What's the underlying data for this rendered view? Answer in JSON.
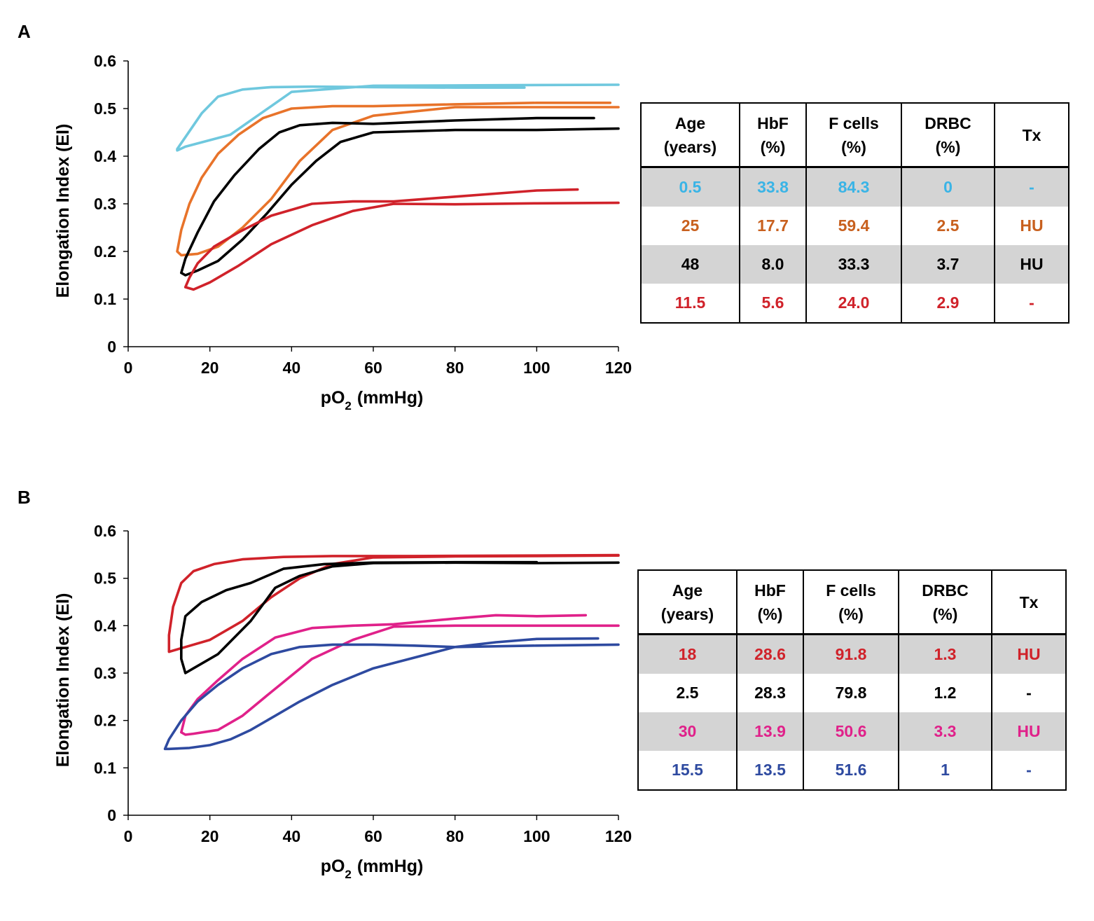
{
  "panels": [
    {
      "letter": "A",
      "table": {
        "headers": [
          [
            "Age",
            "(years)"
          ],
          [
            "HbF",
            "(%)"
          ],
          [
            "F cells",
            "(%)"
          ],
          [
            "DRBC",
            "(%)"
          ],
          [
            "Tx"
          ]
        ],
        "rows": [
          {
            "color": "#3ab4e6",
            "shaded": true,
            "cells": [
              "0.5",
              "33.8",
              "84.3",
              "0",
              "-"
            ]
          },
          {
            "color": "#c8601e",
            "shaded": false,
            "cells": [
              "25",
              "17.7",
              "59.4",
              "2.5",
              "HU"
            ]
          },
          {
            "color": "#000000",
            "shaded": true,
            "cells": [
              "48",
              "8.0",
              "33.3",
              "3.7",
              "HU"
            ]
          },
          {
            "color": "#d0222a",
            "shaded": false,
            "cells": [
              "11.5",
              "5.6",
              "24.0",
              "2.9",
              "-"
            ]
          }
        ]
      }
    },
    {
      "letter": "B",
      "table": {
        "headers": [
          [
            "Age",
            "(years)"
          ],
          [
            "HbF",
            "(%)"
          ],
          [
            "F cells",
            "(%)"
          ],
          [
            "DRBC",
            "(%)"
          ],
          [
            "Tx"
          ]
        ],
        "rows": [
          {
            "color": "#d0222a",
            "shaded": true,
            "cells": [
              "18",
              "28.6",
              "91.8",
              "1.3",
              "HU"
            ]
          },
          {
            "color": "#000000",
            "shaded": false,
            "cells": [
              "2.5",
              "28.3",
              "79.8",
              "1.2",
              "-"
            ]
          },
          {
            "color": "#e0218a",
            "shaded": true,
            "cells": [
              "30",
              "13.9",
              "50.6",
              "3.3",
              "HU"
            ]
          },
          {
            "color": "#2e4aa0",
            "shaded": false,
            "cells": [
              "15.5",
              "13.5",
              "51.6",
              "1",
              "-"
            ]
          }
        ]
      }
    }
  ],
  "chart_data": [
    {
      "type": "line",
      "panel": "A",
      "xlabel": "pO",
      "xlabel_sub": "2",
      "xlabel_unit": "(mmHg)",
      "ylabel": "Elongation Index (EI)",
      "xlim": [
        0,
        120
      ],
      "ylim": [
        0,
        0.6
      ],
      "xticks": [
        0,
        20,
        40,
        60,
        80,
        100,
        120
      ],
      "yticks": [
        0,
        0.1,
        0.2,
        0.3,
        0.4,
        0.5,
        0.6
      ],
      "ytick_labels": [
        "0",
        "0.1",
        "0.2",
        "0.3",
        "0.4",
        "0.5",
        "0.6"
      ],
      "grid": false,
      "series": [
        {
          "name": "0.5 years",
          "color": "#6fc8de",
          "x": [
            120,
            90,
            60,
            40,
            25,
            14,
            12,
            12,
            14,
            18,
            22,
            28,
            35,
            45,
            60,
            80,
            97
          ],
          "y": [
            0.55,
            0.549,
            0.548,
            0.535,
            0.445,
            0.42,
            0.412,
            0.415,
            0.44,
            0.49,
            0.525,
            0.54,
            0.545,
            0.546,
            0.545,
            0.544,
            0.544
          ]
        },
        {
          "name": "25 years",
          "color": "#e8732a",
          "x": [
            120,
            100,
            80,
            60,
            50,
            42,
            35,
            28,
            22,
            17,
            13,
            12,
            13,
            15,
            18,
            22,
            27,
            33,
            40,
            50,
            60,
            80,
            100,
            118
          ],
          "y": [
            0.503,
            0.503,
            0.503,
            0.485,
            0.455,
            0.39,
            0.31,
            0.25,
            0.21,
            0.195,
            0.192,
            0.2,
            0.245,
            0.3,
            0.355,
            0.405,
            0.445,
            0.48,
            0.5,
            0.505,
            0.505,
            0.509,
            0.512,
            0.512
          ]
        },
        {
          "name": "48 years",
          "color": "#000000",
          "x": [
            120,
            100,
            80,
            60,
            52,
            46,
            40,
            34,
            28,
            22,
            17,
            14,
            13,
            14,
            17,
            21,
            26,
            32,
            37,
            42,
            50,
            60,
            80,
            100,
            114
          ],
          "y": [
            0.458,
            0.455,
            0.455,
            0.45,
            0.43,
            0.39,
            0.34,
            0.28,
            0.225,
            0.18,
            0.16,
            0.15,
            0.155,
            0.185,
            0.24,
            0.305,
            0.36,
            0.415,
            0.45,
            0.465,
            0.47,
            0.468,
            0.475,
            0.48,
            0.48
          ]
        },
        {
          "name": "11.5 years",
          "color": "#d0222a",
          "x": [
            120,
            100,
            80,
            65,
            55,
            45,
            35,
            27,
            20,
            16,
            14,
            15,
            17,
            21,
            27,
            35,
            45,
            55,
            65,
            80,
            100,
            110
          ],
          "y": [
            0.302,
            0.301,
            0.299,
            0.3,
            0.285,
            0.255,
            0.215,
            0.17,
            0.135,
            0.12,
            0.125,
            0.145,
            0.175,
            0.21,
            0.24,
            0.275,
            0.3,
            0.305,
            0.305,
            0.315,
            0.328,
            0.33
          ]
        }
      ]
    },
    {
      "type": "line",
      "panel": "B",
      "xlabel": "pO",
      "xlabel_sub": "2",
      "xlabel_unit": "(mmHg)",
      "ylabel": "Elongation Index (EI)",
      "xlim": [
        0,
        120
      ],
      "ylim": [
        0,
        0.6
      ],
      "xticks": [
        0,
        20,
        40,
        60,
        80,
        100,
        120
      ],
      "yticks": [
        0,
        0.1,
        0.2,
        0.3,
        0.4,
        0.5,
        0.6
      ],
      "ytick_labels": [
        "0",
        "0.1",
        "0.2",
        "0.3",
        "0.4",
        "0.5",
        "0.6"
      ],
      "grid": false,
      "series": [
        {
          "name": "18 years",
          "color": "#d0222a",
          "x": [
            120,
            100,
            80,
            60,
            50,
            42,
            35,
            28,
            20,
            14,
            10,
            10,
            11,
            13,
            16,
            21,
            28,
            38,
            50,
            70,
            100,
            120
          ],
          "y": [
            0.548,
            0.547,
            0.546,
            0.544,
            0.53,
            0.5,
            0.46,
            0.41,
            0.37,
            0.355,
            0.345,
            0.38,
            0.44,
            0.49,
            0.515,
            0.53,
            0.54,
            0.545,
            0.547,
            0.547,
            0.548,
            0.549
          ]
        },
        {
          "name": "2.5 years",
          "color": "#000000",
          "x": [
            120,
            100,
            80,
            60,
            50,
            42,
            36,
            30,
            22,
            16,
            14,
            13,
            13,
            14,
            18,
            24,
            30,
            38,
            48,
            60,
            80,
            100
          ],
          "y": [
            0.533,
            0.532,
            0.533,
            0.532,
            0.525,
            0.505,
            0.48,
            0.41,
            0.34,
            0.31,
            0.3,
            0.33,
            0.37,
            0.42,
            0.45,
            0.475,
            0.49,
            0.52,
            0.53,
            0.533,
            0.534,
            0.534
          ]
        },
        {
          "name": "30 years",
          "color": "#e0218a",
          "x": [
            120,
            100,
            80,
            65,
            55,
            45,
            35,
            28,
            22,
            16,
            14,
            13,
            14,
            17,
            22,
            28,
            36,
            45,
            55,
            65,
            80,
            90,
            100,
            112
          ],
          "y": [
            0.4,
            0.4,
            0.4,
            0.398,
            0.37,
            0.33,
            0.26,
            0.21,
            0.18,
            0.172,
            0.17,
            0.175,
            0.21,
            0.245,
            0.285,
            0.33,
            0.375,
            0.395,
            0.4,
            0.403,
            0.415,
            0.422,
            0.42,
            0.422
          ]
        },
        {
          "name": "15.5 years",
          "color": "#2e4aa0",
          "x": [
            120,
            100,
            80,
            60,
            50,
            42,
            36,
            30,
            25,
            20,
            15,
            10,
            9,
            10,
            13,
            17,
            22,
            28,
            35,
            42,
            50,
            60,
            70,
            80,
            90,
            100,
            115
          ],
          "y": [
            0.36,
            0.358,
            0.355,
            0.31,
            0.275,
            0.24,
            0.21,
            0.18,
            0.16,
            0.148,
            0.142,
            0.14,
            0.14,
            0.16,
            0.2,
            0.24,
            0.275,
            0.31,
            0.34,
            0.355,
            0.36,
            0.36,
            0.358,
            0.355,
            0.365,
            0.372,
            0.373
          ]
        }
      ]
    }
  ]
}
